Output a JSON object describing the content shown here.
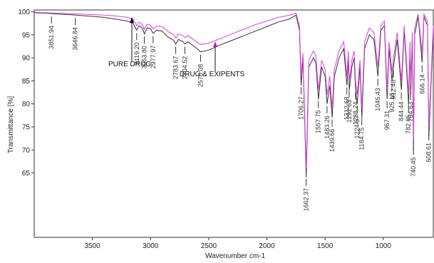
{
  "chart_data": {
    "type": "line",
    "xlabel": "Wavenumber cm-1",
    "ylabel": "Transmittance [%]",
    "xlim": [
      4000,
      570
    ],
    "ylim": [
      51,
      100.4
    ],
    "xticks": [
      3500,
      3000,
      2500,
      2000,
      1500,
      1000
    ],
    "yticks": [
      65,
      70,
      75,
      80,
      85,
      90,
      95,
      100
    ],
    "x": [
      4000,
      3900,
      3800,
      3700,
      3600,
      3500,
      3400,
      3300,
      3200,
      3150,
      3119,
      3100,
      3070,
      3053,
      3030,
      3000,
      2977,
      2950,
      2900,
      2850,
      2800,
      2783,
      2760,
      2720,
      2704,
      2680,
      2600,
      2570,
      2500,
      2400,
      2300,
      2200,
      2100,
      2000,
      1900,
      1800,
      1750,
      1720,
      1706,
      1690,
      1662,
      1640,
      1600,
      1580,
      1557,
      1530,
      1500,
      1483,
      1460,
      1439,
      1420,
      1380,
      1340,
      1312,
      1300,
      1292,
      1270,
      1250,
      1238,
      1224,
      1200,
      1184,
      1160,
      1120,
      1080,
      1046,
      1020,
      990,
      967,
      950,
      925,
      912,
      880,
      844,
      820,
      782,
      770,
      764,
      750,
      740,
      730,
      700,
      666,
      650,
      620,
      608,
      570
    ],
    "series": [
      {
        "color": "#333333",
        "values": [
          99.8,
          99.7,
          99.5,
          99.4,
          99.2,
          99.0,
          98.8,
          98.4,
          98.0,
          97.5,
          96.0,
          97.0,
          96.5,
          95.2,
          96.5,
          96.3,
          95.3,
          96.0,
          95.8,
          94.5,
          93.8,
          93.0,
          94.0,
          93.5,
          93.0,
          93.5,
          92.0,
          91.3,
          91.7,
          92.8,
          93.8,
          94.8,
          95.8,
          96.8,
          97.8,
          98.5,
          99.3,
          96.0,
          84.0,
          90.0,
          64.0,
          88.0,
          90.0,
          89.0,
          81.0,
          88.0,
          86.0,
          80.0,
          84.0,
          77.0,
          86.0,
          90.0,
          92.0,
          84.0,
          90.0,
          83.0,
          88.0,
          90.0,
          83.0,
          80.0,
          88.0,
          77.0,
          92.0,
          95.0,
          94.0,
          86.0,
          96.0,
          97.0,
          81.0,
          92.0,
          85.0,
          88.0,
          94.0,
          83.0,
          96.0,
          80.0,
          92.0,
          82.0,
          94.0,
          70.0,
          95.0,
          99.0,
          89.0,
          99.0,
          97.0,
          73.0,
          96.0
        ]
      },
      {
        "color": "#e040e0",
        "values": [
          99.9,
          99.8,
          99.7,
          99.6,
          99.5,
          99.4,
          99.3,
          99.1,
          98.8,
          98.4,
          97.0,
          97.8,
          97.3,
          96.2,
          97.3,
          97.1,
          96.3,
          96.9,
          96.8,
          95.7,
          95.0,
          94.3,
          95.2,
          94.8,
          94.4,
          94.8,
          93.4,
          92.9,
          93.2,
          94.2,
          95.2,
          96.2,
          97.2,
          98.0,
          98.8,
          99.3,
          99.7,
          97.0,
          86.0,
          91.0,
          66.0,
          89.5,
          91.5,
          90.5,
          83.0,
          89.5,
          87.5,
          82.0,
          86.0,
          79.0,
          87.5,
          91.5,
          93.5,
          86.0,
          91.5,
          85.0,
          89.5,
          91.5,
          85.0,
          82.0,
          89.5,
          79.0,
          93.5,
          96.5,
          95.5,
          88.0,
          97.0,
          98.0,
          83.0,
          93.5,
          87.0,
          90.0,
          95.5,
          85.0,
          97.0,
          82.0,
          93.5,
          84.0,
          95.5,
          72.0,
          96.5,
          99.5,
          91.0,
          99.5,
          98.0,
          75.0,
          97.0
        ]
      }
    ],
    "peaks": [
      3851.94,
      3646.84,
      {
        "value": 3119.2,
        "label": "3119.20"
      },
      {
        "value": 3053.8,
        "label": "3053.80"
      },
      2977.97,
      2783.67,
      2704.52,
      2570.08,
      1706.27,
      1662.37,
      1557.75,
      1483.26,
      1439.66,
      1312.68,
      1292.63,
      1238.24,
      1224.57,
      1184.75,
      1046.43,
      967.31,
      925.18,
      912.48,
      844.44,
      782.85,
      764.63,
      740.45,
      666.14,
      608.61
    ],
    "annotations": [
      "PURE DRUG",
      "DRUG & EXIPENTS"
    ]
  }
}
